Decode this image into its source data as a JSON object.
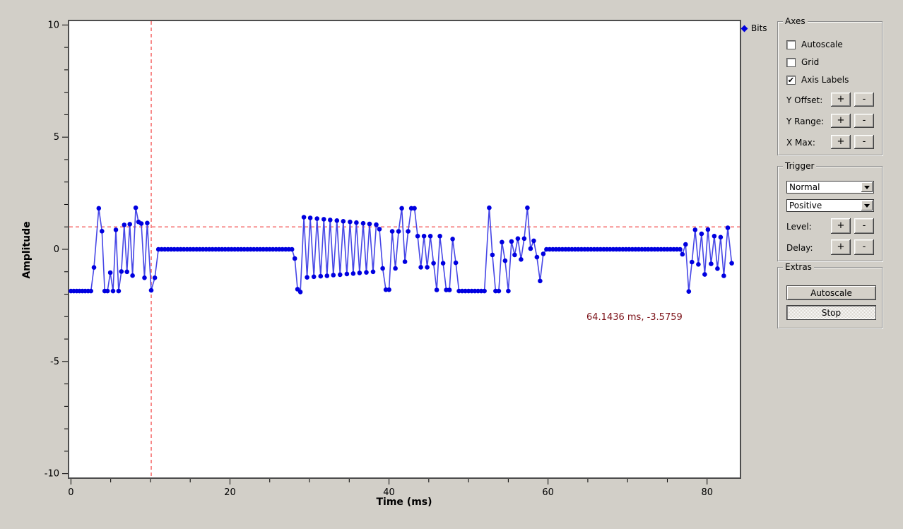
{
  "colors": {
    "background": "#d2cfc8",
    "plot_background": "#ffffff",
    "frame": "#4d4d4d",
    "marker": "#0000e0",
    "line": "#4646e6",
    "crosshair": "#f78080",
    "cursor_text": "#7c1118"
  },
  "legend": {
    "label": "Bits"
  },
  "plot": {
    "cursor_text": "64.1436 ms, -3.5759"
  },
  "controls": {
    "plus": "+",
    "minus": "-"
  },
  "panels": {
    "axes": {
      "title": "Axes",
      "checkboxes": [
        {
          "label": "Autoscale",
          "checked": false
        },
        {
          "label": "Grid",
          "checked": false
        },
        {
          "label": "Axis Labels",
          "checked": true
        }
      ],
      "spinners": [
        {
          "label": "Y Offset:"
        },
        {
          "label": "Y Range:"
        },
        {
          "label": "X Max:"
        }
      ]
    },
    "trigger": {
      "title": "Trigger",
      "mode": "Normal",
      "slope": "Positive",
      "spinners": [
        {
          "label": "Level:"
        },
        {
          "label": "Delay:"
        }
      ]
    },
    "extras": {
      "title": "Extras",
      "buttons": [
        {
          "label": "Autoscale",
          "pressed": false
        },
        {
          "label": "Stop",
          "pressed": true
        }
      ]
    }
  },
  "chart_data": {
    "type": "line",
    "title": "",
    "xlabel": "Time (ms)",
    "ylabel": "Amplitude",
    "xlim": [
      -0.3,
      84.2
    ],
    "ylim": [
      -10.2,
      10.2
    ],
    "x_major_ticks": [
      0,
      20,
      40,
      60,
      80
    ],
    "x_minor_step": 5,
    "y_major_ticks": [
      10,
      5,
      0,
      -5,
      -10
    ],
    "y_minor_step": 1,
    "grid": false,
    "legend_position": "top-right",
    "trigger_level": 1.0,
    "trigger_delay_ms": 10.1,
    "series": [
      {
        "name": "Bits",
        "marker": "circle",
        "marker_color": "#0000e0",
        "line_color": "#4646e6",
        "points": [
          [
            0,
            -1.86
          ],
          [
            0.36,
            -1.86
          ],
          [
            0.72,
            -1.86
          ],
          [
            1.08,
            -1.86
          ],
          [
            1.44,
            -1.86
          ],
          [
            1.8,
            -1.86
          ],
          [
            2.16,
            -1.86
          ],
          [
            2.52,
            -1.86
          ],
          [
            2.9,
            -0.81
          ],
          [
            3.5,
            1.83
          ],
          [
            3.9,
            0.81
          ],
          [
            4.25,
            -1.86
          ],
          [
            4.6,
            -1.86
          ],
          [
            4.95,
            -1.04
          ],
          [
            5.3,
            -1.86
          ],
          [
            5.65,
            0.87
          ],
          [
            6.0,
            -1.86
          ],
          [
            6.35,
            -0.99
          ],
          [
            6.7,
            1.09
          ],
          [
            7.05,
            -1.0
          ],
          [
            7.4,
            1.12
          ],
          [
            7.75,
            -1.17
          ],
          [
            8.15,
            1.85
          ],
          [
            8.5,
            1.22
          ],
          [
            8.85,
            1.15
          ],
          [
            9.25,
            -1.27
          ],
          [
            9.6,
            1.17
          ],
          [
            10.1,
            -1.83
          ],
          [
            10.55,
            -1.27
          ],
          [
            11,
            0
          ],
          [
            11.4,
            0
          ],
          [
            11.8,
            0
          ],
          [
            12.2,
            0
          ],
          [
            12.6,
            0
          ],
          [
            13,
            0
          ],
          [
            13.4,
            0
          ],
          [
            13.8,
            0
          ],
          [
            14.2,
            0
          ],
          [
            14.6,
            0
          ],
          [
            15,
            0
          ],
          [
            15.4,
            0
          ],
          [
            15.8,
            0
          ],
          [
            16.2,
            0
          ],
          [
            16.6,
            0
          ],
          [
            17,
            0
          ],
          [
            17.4,
            0
          ],
          [
            17.8,
            0
          ],
          [
            18.2,
            0
          ],
          [
            18.6,
            0
          ],
          [
            19,
            0
          ],
          [
            19.4,
            0
          ],
          [
            19.8,
            0
          ],
          [
            20.2,
            0
          ],
          [
            20.6,
            0
          ],
          [
            21,
            0
          ],
          [
            21.4,
            0
          ],
          [
            21.8,
            0
          ],
          [
            22.2,
            0
          ],
          [
            22.6,
            0
          ],
          [
            23,
            0
          ],
          [
            23.4,
            0
          ],
          [
            23.8,
            0
          ],
          [
            24.2,
            0
          ],
          [
            24.6,
            0
          ],
          [
            25,
            0
          ],
          [
            25.4,
            0
          ],
          [
            25.8,
            0
          ],
          [
            26.2,
            0
          ],
          [
            26.6,
            0
          ],
          [
            27,
            0
          ],
          [
            27.4,
            0
          ],
          [
            27.8,
            0
          ],
          [
            28.15,
            -0.41
          ],
          [
            28.5,
            -1.78
          ],
          [
            28.85,
            -1.9
          ],
          [
            29.3,
            1.43
          ],
          [
            29.7,
            -1.25
          ],
          [
            30.1,
            1.4
          ],
          [
            30.55,
            -1.22
          ],
          [
            30.95,
            1.37
          ],
          [
            31.4,
            -1.2
          ],
          [
            31.8,
            1.34
          ],
          [
            32.2,
            -1.18
          ],
          [
            32.6,
            1.31
          ],
          [
            33,
            -1.15
          ],
          [
            33.45,
            1.28
          ],
          [
            33.85,
            -1.13
          ],
          [
            34.25,
            1.25
          ],
          [
            34.7,
            -1.1
          ],
          [
            35.1,
            1.22
          ],
          [
            35.5,
            -1.08
          ],
          [
            35.9,
            1.19
          ],
          [
            36.3,
            -1.05
          ],
          [
            36.75,
            1.16
          ],
          [
            37.15,
            -1.03
          ],
          [
            37.55,
            1.13
          ],
          [
            38,
            -1
          ],
          [
            38.4,
            1.1
          ],
          [
            38.8,
            0.9
          ],
          [
            39.2,
            -0.85
          ],
          [
            39.6,
            -1.8
          ],
          [
            40,
            -1.8
          ],
          [
            40.4,
            0.8
          ],
          [
            40.8,
            -0.85
          ],
          [
            41.2,
            0.8
          ],
          [
            41.6,
            1.83
          ],
          [
            42,
            -0.55
          ],
          [
            42.4,
            0.8
          ],
          [
            42.8,
            1.83
          ],
          [
            43.2,
            1.83
          ],
          [
            43.6,
            0.59
          ],
          [
            44,
            -0.8
          ],
          [
            44.4,
            0.59
          ],
          [
            44.8,
            -0.8
          ],
          [
            45.2,
            0.59
          ],
          [
            45.6,
            -0.62
          ],
          [
            46,
            -1.81
          ],
          [
            46.4,
            0.59
          ],
          [
            46.8,
            -0.62
          ],
          [
            47.2,
            -1.81
          ],
          [
            47.6,
            -1.81
          ],
          [
            48,
            0.46
          ],
          [
            48.4,
            -0.6
          ],
          [
            48.8,
            -1.86
          ],
          [
            49.2,
            -1.86
          ],
          [
            49.6,
            -1.86
          ],
          [
            50,
            -1.86
          ],
          [
            50.4,
            -1.86
          ],
          [
            50.8,
            -1.86
          ],
          [
            51.2,
            -1.86
          ],
          [
            51.6,
            -1.86
          ],
          [
            52,
            -1.86
          ],
          [
            52.6,
            1.85
          ],
          [
            53,
            -0.25
          ],
          [
            53.4,
            -1.86
          ],
          [
            53.8,
            -1.86
          ],
          [
            54.2,
            0.32
          ],
          [
            54.6,
            -0.51
          ],
          [
            55,
            -1.86
          ],
          [
            55.4,
            0.35
          ],
          [
            55.8,
            -0.25
          ],
          [
            56.2,
            0.48
          ],
          [
            56.6,
            -0.45
          ],
          [
            57,
            0.48
          ],
          [
            57.4,
            1.85
          ],
          [
            57.8,
            0.03
          ],
          [
            58.2,
            0.38
          ],
          [
            58.6,
            -0.35
          ],
          [
            59,
            -1.41
          ],
          [
            59.4,
            -0.2
          ],
          [
            59.8,
            0
          ],
          [
            60.2,
            0
          ],
          [
            60.6,
            0
          ],
          [
            61,
            0
          ],
          [
            61.4,
            0
          ],
          [
            61.8,
            0
          ],
          [
            62.2,
            0
          ],
          [
            62.6,
            0
          ],
          [
            63,
            0
          ],
          [
            63.4,
            0
          ],
          [
            63.8,
            0
          ],
          [
            64.2,
            0
          ],
          [
            64.6,
            0
          ],
          [
            65,
            0
          ],
          [
            65.4,
            0
          ],
          [
            65.8,
            0
          ],
          [
            66.2,
            0
          ],
          [
            66.6,
            0
          ],
          [
            67,
            0
          ],
          [
            67.4,
            0
          ],
          [
            67.8,
            0
          ],
          [
            68.2,
            0
          ],
          [
            68.6,
            0
          ],
          [
            69,
            0
          ],
          [
            69.4,
            0
          ],
          [
            69.8,
            0
          ],
          [
            70.2,
            0
          ],
          [
            70.6,
            0
          ],
          [
            71,
            0
          ],
          [
            71.4,
            0
          ],
          [
            71.8,
            0
          ],
          [
            72.2,
            0
          ],
          [
            72.6,
            0
          ],
          [
            73,
            0
          ],
          [
            73.4,
            0
          ],
          [
            73.8,
            0
          ],
          [
            74.2,
            0
          ],
          [
            74.6,
            0
          ],
          [
            75,
            0
          ],
          [
            75.4,
            0
          ],
          [
            75.8,
            0
          ],
          [
            76.2,
            0
          ],
          [
            76.6,
            0
          ],
          [
            76.9,
            -0.22
          ],
          [
            77.3,
            0.22
          ],
          [
            77.7,
            -1.88
          ],
          [
            78.1,
            -0.57
          ],
          [
            78.5,
            0.87
          ],
          [
            78.9,
            -0.67
          ],
          [
            79.3,
            0.69
          ],
          [
            79.7,
            -1.12
          ],
          [
            80.1,
            0.88
          ],
          [
            80.5,
            -0.65
          ],
          [
            80.9,
            0.59
          ],
          [
            81.3,
            -0.86
          ],
          [
            81.7,
            0.54
          ],
          [
            82.1,
            -1.18
          ],
          [
            82.6,
            0.96
          ],
          [
            83.1,
            -0.62
          ]
        ]
      }
    ]
  }
}
